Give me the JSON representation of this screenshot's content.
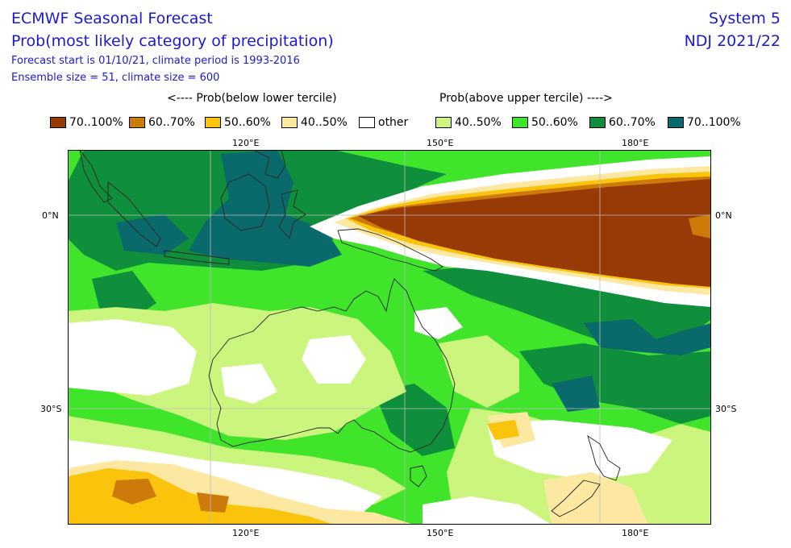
{
  "header": {
    "title": "ECMWF Seasonal Forecast",
    "subtitle": "Prob(most likely category of precipitation)",
    "forecast_start": "Forecast start is 01/10/21, climate period is 1993-2016",
    "ensemble": "Ensemble size = 51, climate size = 600",
    "system": "System 5",
    "season": "NDJ 2021/22"
  },
  "legend": {
    "below_title": "<---- Prob(below lower tercile)",
    "above_title": "Prob(above upper tercile) ---->",
    "items": [
      {
        "label": "70..100%",
        "color": "#983a06"
      },
      {
        "label": "60..70%",
        "color": "#cc7a0a"
      },
      {
        "label": "50..60%",
        "color": "#fbc40c"
      },
      {
        "label": "40..50%",
        "color": "#fde8a2"
      },
      {
        "label": "other",
        "color": "#ffffff"
      },
      {
        "label": "40..50%",
        "color": "#ccf57e"
      },
      {
        "label": "50..60%",
        "color": "#3fe42b"
      },
      {
        "label": "60..70%",
        "color": "#0f8f3b"
      },
      {
        "label": "70..100%",
        "color": "#0a6a6b"
      }
    ]
  },
  "map": {
    "lon_labels": [
      "120°E",
      "150°E",
      "180°E"
    ],
    "lat_labels": [
      "0°N",
      "30°S"
    ],
    "colors": {
      "white": "#ffffff",
      "g40": "#ccf57e",
      "g50": "#3fe42b",
      "g60": "#0f8f3b",
      "g70": "#0a6a6b",
      "y40": "#fde8a2",
      "y50": "#fbc40c",
      "b60": "#cc7a0a",
      "b70": "#983a06",
      "coast": "#222222",
      "grid": "#bbbbbb"
    }
  }
}
